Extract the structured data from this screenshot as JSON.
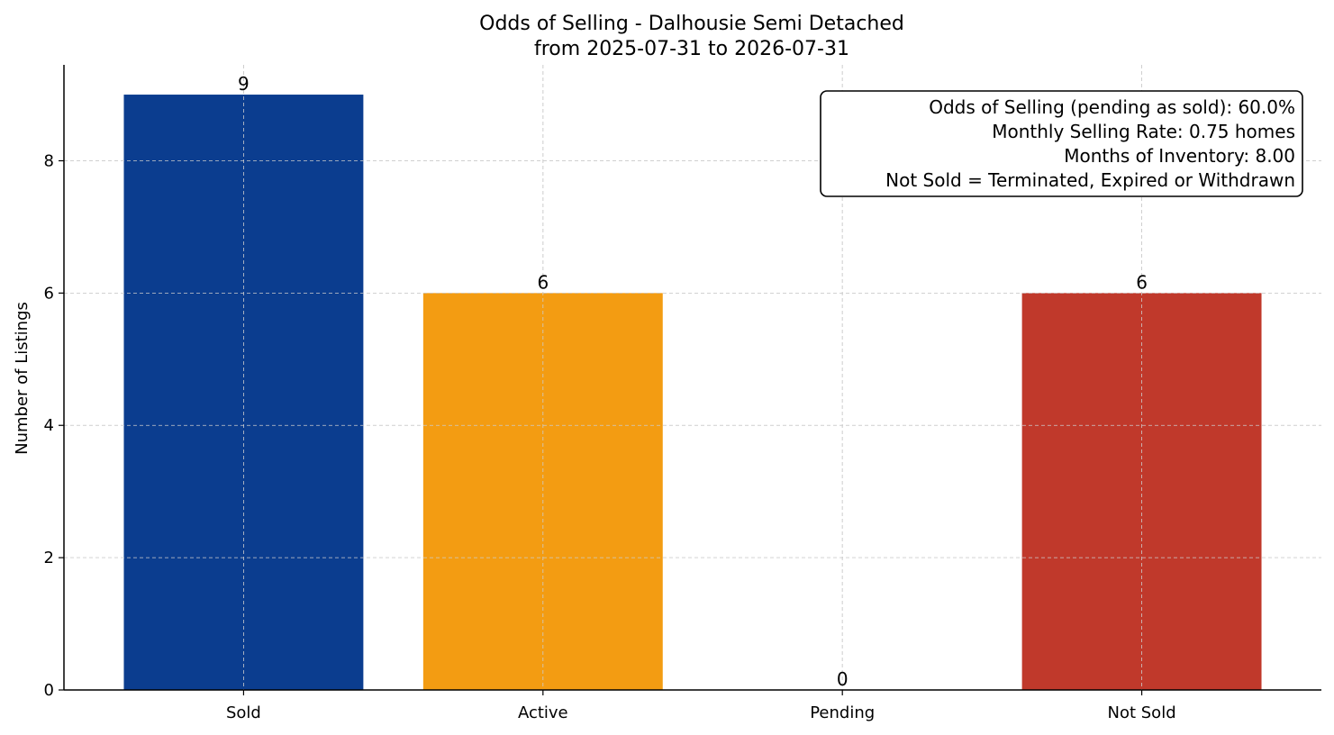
{
  "chart_data": {
    "type": "bar",
    "title": "Odds of Selling - Dalhousie Semi Detached",
    "subtitle": "from 2025-07-31 to 2026-07-31",
    "xlabel": "",
    "ylabel": "Number of Listings",
    "categories": [
      "Sold",
      "Active",
      "Pending",
      "Not Sold"
    ],
    "values": [
      9,
      6,
      0,
      6
    ],
    "colors": [
      "#0b3d8f",
      "#f39c12",
      "#27ae60",
      "#c0392b"
    ],
    "ylim": [
      0,
      9.45
    ],
    "yticks": [
      0,
      2,
      4,
      6,
      8
    ],
    "grid": true,
    "annotation": {
      "position": "top-right",
      "lines": [
        "Odds of Selling (pending as sold): 60.0%",
        "Monthly Selling Rate: 0.75 homes",
        "Months of Inventory: 8.00",
        "Not Sold = Terminated, Expired or Withdrawn"
      ]
    }
  }
}
